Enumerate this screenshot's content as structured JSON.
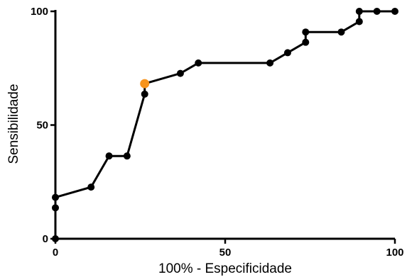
{
  "chart_data": {
    "type": "line",
    "title": "",
    "xlabel": "100% - Especificidade",
    "ylabel": "Sensibilidade",
    "xlim": [
      0,
      100
    ],
    "ylim": [
      0,
      100
    ],
    "xticks": [
      0,
      50,
      100
    ],
    "yticks": [
      0,
      50,
      100
    ],
    "grid": false,
    "legend": "none",
    "series": [
      {
        "color": "#000000",
        "points": [
          {
            "x": 0,
            "y": 0
          },
          {
            "x": 0,
            "y": 13.6
          },
          {
            "x": 0,
            "y": 18.2
          },
          {
            "x": 10.5,
            "y": 22.7
          },
          {
            "x": 15.8,
            "y": 36.4
          },
          {
            "x": 21.1,
            "y": 36.4
          },
          {
            "x": 26.3,
            "y": 63.6
          },
          {
            "x": 26.3,
            "y": 68.2
          },
          {
            "x": 36.8,
            "y": 72.7
          },
          {
            "x": 42.1,
            "y": 77.3
          },
          {
            "x": 63.2,
            "y": 77.3
          },
          {
            "x": 68.4,
            "y": 81.8
          },
          {
            "x": 73.7,
            "y": 86.4
          },
          {
            "x": 73.7,
            "y": 90.9
          },
          {
            "x": 84.2,
            "y": 90.9
          },
          {
            "x": 89.5,
            "y": 95.5
          },
          {
            "x": 89.5,
            "y": 100
          },
          {
            "x": 94.7,
            "y": 100
          },
          {
            "x": 100,
            "y": 100
          }
        ]
      }
    ],
    "highlight": {
      "x": 26.3,
      "y": 68.2,
      "color": "#F7941D"
    }
  }
}
